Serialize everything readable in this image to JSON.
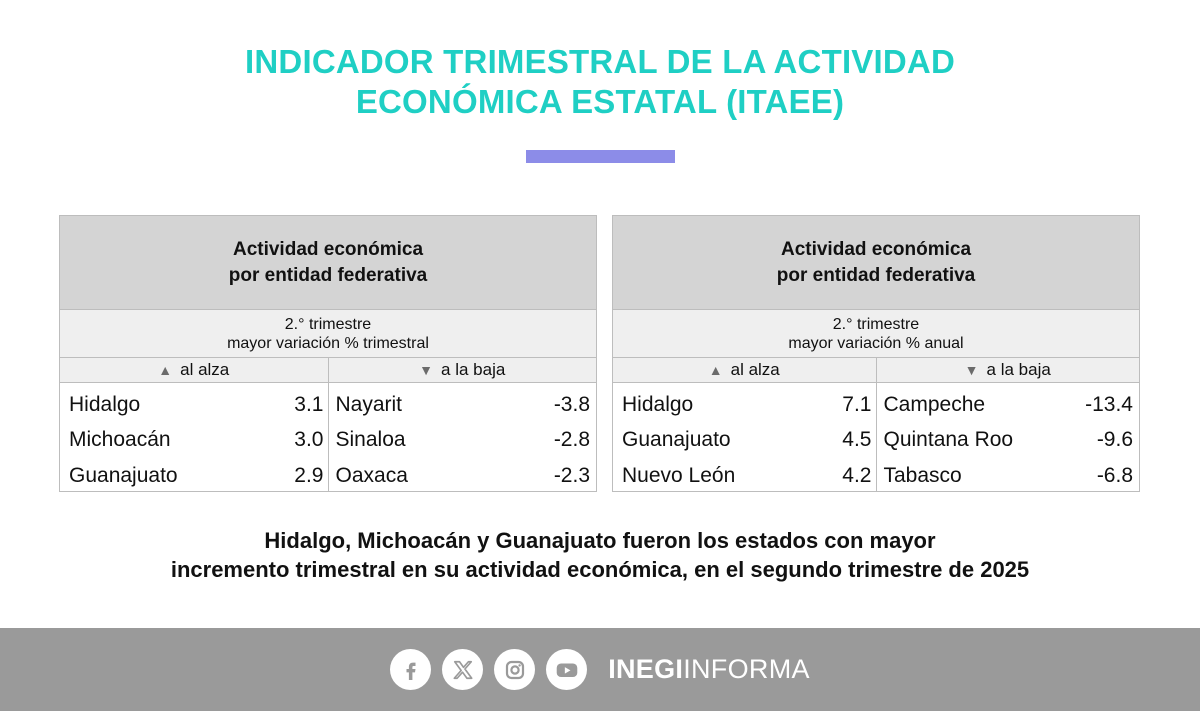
{
  "title": {
    "line1": "INDICADOR TRIMESTRAL DE LA ACTIVIDAD",
    "line2": "ECONÓMICA ESTATAL (ITAEE)"
  },
  "colors": {
    "title": "#1fcfc4",
    "divider": "#8c8ce8",
    "footer": "#9a9a9a"
  },
  "tables": [
    {
      "header_line1": "Actividad económica",
      "header_line2": "por entidad federativa",
      "sub_line1": "2.° trimestre",
      "sub_line2": "mayor variación % trimestral",
      "up_label": "al alza",
      "down_label": "a la baja",
      "up": [
        {
          "state": "Hidalgo",
          "value": "3.1"
        },
        {
          "state": "Michoacán",
          "value": "3.0"
        },
        {
          "state": "Guanajuato",
          "value": "2.9"
        }
      ],
      "down": [
        {
          "state": "Nayarit",
          "value": "-3.8"
        },
        {
          "state": "Sinaloa",
          "value": "-2.8"
        },
        {
          "state": "Oaxaca",
          "value": "-2.3"
        }
      ]
    },
    {
      "header_line1": "Actividad económica",
      "header_line2": "por entidad federativa",
      "sub_line1": "2.° trimestre",
      "sub_line2": "mayor variación % anual",
      "up_label": "al alza",
      "down_label": "a la baja",
      "up": [
        {
          "state": "Hidalgo",
          "value": "7.1"
        },
        {
          "state": "Guanajuato",
          "value": "4.5"
        },
        {
          "state": "Nuevo León",
          "value": "4.2"
        }
      ],
      "down": [
        {
          "state": "Campeche",
          "value": "-13.4"
        },
        {
          "state": "Quintana Roo",
          "value": "-9.6"
        },
        {
          "state": "Tabasco",
          "value": "-6.8"
        }
      ]
    }
  ],
  "note": {
    "line1": "Hidalgo, Michoacán y Guanajuato fueron los estados con mayor",
    "line2": "incremento trimestral en su actividad económica, en el segundo trimestre de 2025"
  },
  "footer": {
    "icons": [
      "facebook-icon",
      "x-icon",
      "instagram-icon",
      "youtube-icon"
    ],
    "brand_bold": "INEGI",
    "brand_regular": "INFORMA"
  }
}
